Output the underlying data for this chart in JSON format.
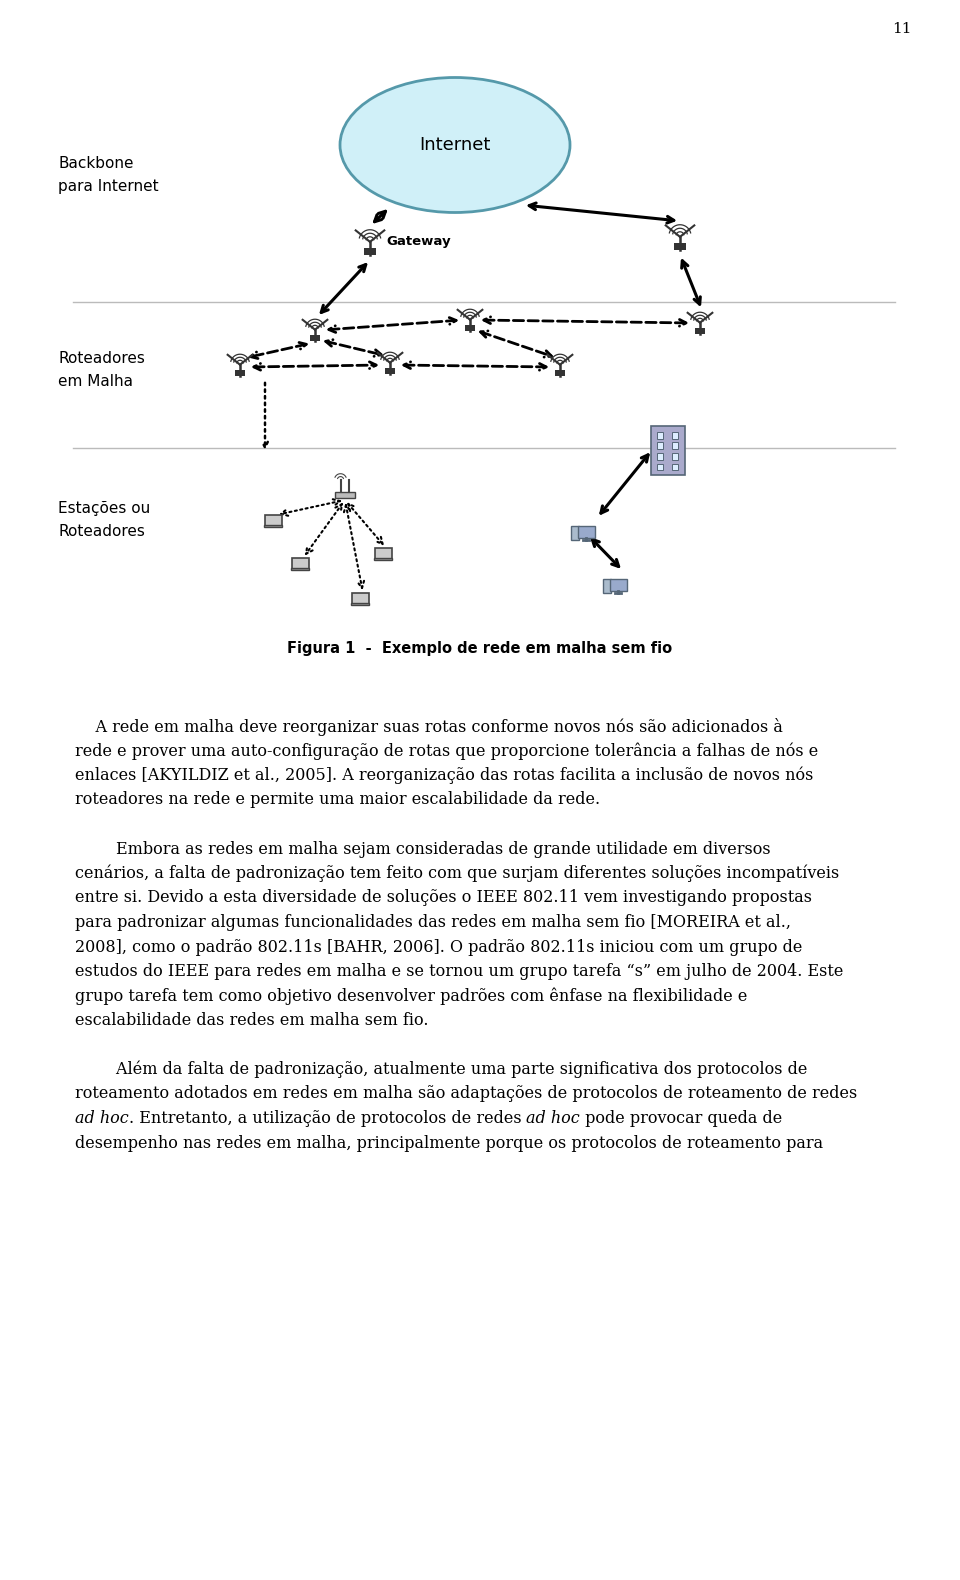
{
  "page_number": "11",
  "bg_color": "#ffffff",
  "diagram": {
    "backbone_label": "Backbone\npara Internet",
    "roteadores_malha_label": "Roteadores\nem Malha",
    "estacoes_label": "Estações ou\nRoteadores",
    "internet_label": "Internet",
    "gateway_label": "Gateway",
    "figura_caption": "Figura 1  -  Exemplo de rede em malha sem fio"
  },
  "text_lines": [
    "    A rede em malha deve reorganizar suas rotas conforme novos nós são adicionados à",
    "rede e prover uma auto-configuração de rotas que proporcione tolerância a falhas de nós e",
    "enlaces [AKYILDIZ et al., 2005]. A reorganização das rotas facilita a inclusão de novos nós",
    "roteadores na rede e permite uma maior escalabilidade da rede.",
    "",
    "        Embora as redes em malha sejam consideradas de grande utilidade em diversos",
    "cenários, a falta de padronização tem feito com que surjam diferentes soluções incompatíveis",
    "entre si. Devido a esta diversidade de soluções o IEEE 802.11 vem investigando propostas",
    "para padronizar algumas funcionalidades das redes em malha sem fio [MOREIRA et al.,",
    "2008], como o padrão 802.11s [BAHR, 2006]. O padrão 802.11s iniciou com um grupo de",
    "estudos do IEEE para redes em malha e se tornou um grupo tarefa “s” em julho de 2004. Este",
    "grupo tarefa tem como objetivo desenvolver padrões com ênfase na flexibilidade e",
    "escalabilidade das redes em malha sem fio.",
    "",
    "        Além da falta de padronização, atualmente uma parte significativa dos protocolos de",
    "roteamento adotados em redes em malha são adaptações de protocolos de roteamento de redes",
    "ad hoc. Entretanto, a utilização de protocolos de redes ad hoc pode provocar queda de",
    "desempenho nas redes em malha, principalmente porque os protocolos de roteamento para"
  ],
  "italic_words": [
    "ad hoc"
  ],
  "font_size_body": 11.5,
  "font_size_caption": 10.5,
  "font_size_label": 11,
  "text_color": "#000000"
}
